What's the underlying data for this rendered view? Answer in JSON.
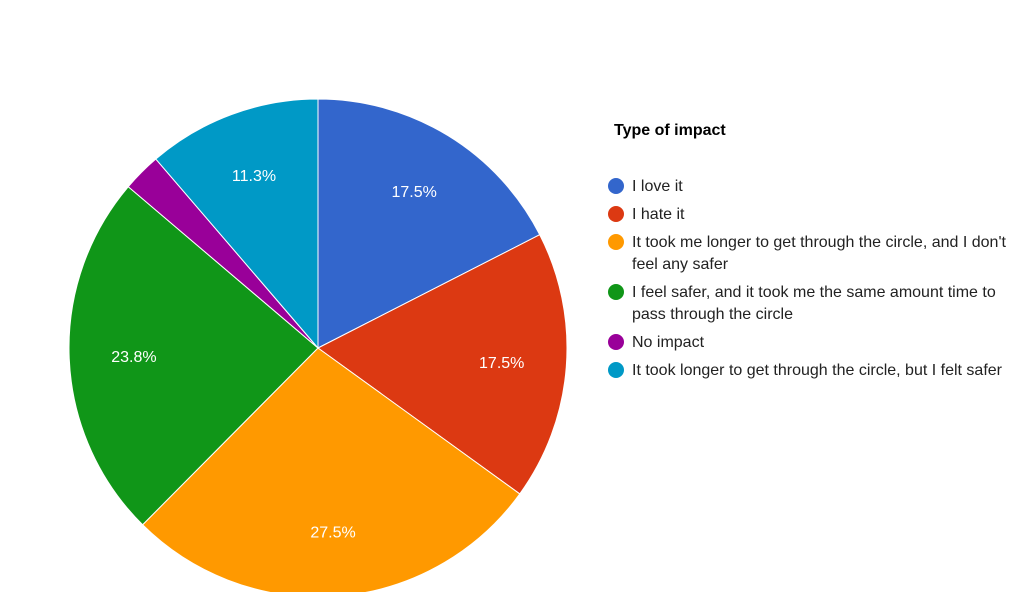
{
  "chart_data": {
    "type": "pie",
    "legend_title": "Type of impact",
    "legend_position": "right",
    "slices": [
      {
        "label": "I love it",
        "value": 17.5,
        "display": "17.5%",
        "color": "#3366cc"
      },
      {
        "label": "I hate it",
        "value": 17.5,
        "display": "17.5%",
        "color": "#dc3912"
      },
      {
        "label": "It took me longer to get through the circle, and I don't feel any safer",
        "value": 27.5,
        "display": "27.5%",
        "color": "#ff9900"
      },
      {
        "label": "I feel safer, and it took me the same amount time to pass through the circle",
        "value": 23.8,
        "display": "23.8%",
        "color": "#109618"
      },
      {
        "label": "No impact",
        "value": 2.5,
        "display": "",
        "color": "#990099"
      },
      {
        "label": "It took longer to get through the circle, but I felt safer",
        "value": 11.3,
        "display": "11.3%",
        "color": "#0099c6"
      }
    ]
  }
}
